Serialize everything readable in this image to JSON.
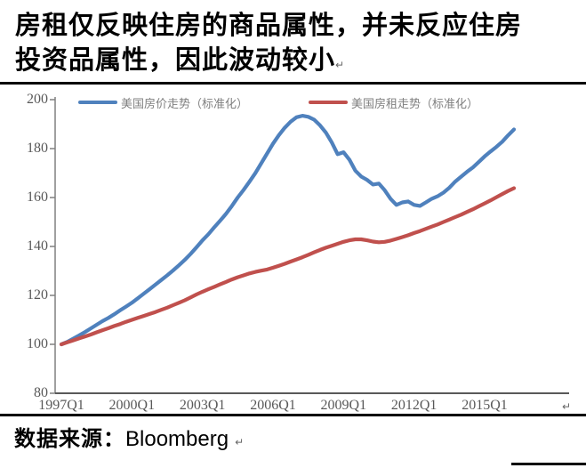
{
  "title": {
    "line1": "房租仅反映住房的商品属性，并未反应住房",
    "line2": "投资品属性，因此波动较小",
    "paragraph_mark": "↵"
  },
  "source": {
    "label": "数据来源：",
    "value": "Bloomberg"
  },
  "colors": {
    "price_line": "#4F81BD",
    "rent_line": "#C0504D",
    "axis": "#808080",
    "x_axis": "#595959",
    "tick_text": "#595959",
    "legend_text": "#7F7F7F"
  },
  "chart_data": {
    "type": "line",
    "title": "",
    "xlabel": "",
    "ylabel": "",
    "ylim": [
      80,
      200
    ],
    "y_ticks": [
      80,
      100,
      120,
      140,
      160,
      180,
      200
    ],
    "x_tick_labels": [
      "1997Q1",
      "2000Q1",
      "2003Q1",
      "2006Q1",
      "2009Q1",
      "2012Q1",
      "2015Q1"
    ],
    "x_freq": "quarterly",
    "x_start": "1997Q1",
    "x_end": "2016Q2",
    "grid": false,
    "legend_position": "top",
    "series": [
      {
        "name": "美国房价走势（标准化）",
        "color": "#4F81BD",
        "values": [
          100,
          101,
          102.3,
          103.6,
          105,
          106.5,
          108,
          109.5,
          110.8,
          112.3,
          113.9,
          115.4,
          117,
          118.8,
          120.7,
          122.5,
          124.4,
          126.3,
          128.2,
          130.2,
          132.3,
          134.5,
          137,
          139.7,
          142.5,
          145,
          147.8,
          150.5,
          153.3,
          156.5,
          160,
          163.1,
          166.5,
          170,
          174,
          178,
          182,
          185.5,
          188.5,
          191,
          192.8,
          193.4,
          193,
          191.8,
          189.5,
          186.5,
          182.5,
          177.7,
          178.5,
          175.5,
          171,
          168.6,
          167.2,
          165.3,
          165.7,
          163,
          159.5,
          157,
          158,
          158.4,
          157,
          156.6,
          158,
          159.5,
          160.5,
          162,
          164,
          166.5,
          168.5,
          170.5,
          172.3,
          174.5,
          176.8,
          178.8,
          180.7,
          182.8,
          185.4,
          187.8
        ]
      },
      {
        "name": "美国房租走势（标准化）",
        "color": "#C0504D",
        "values": [
          100,
          100.8,
          101.6,
          102.4,
          103.2,
          104,
          104.9,
          105.8,
          106.6,
          107.5,
          108.3,
          109.2,
          110,
          110.8,
          111.6,
          112.4,
          113.2,
          114.1,
          115,
          116,
          117,
          118,
          119.2,
          120.4,
          121.5,
          122.5,
          123.5,
          124.5,
          125.5,
          126.5,
          127.4,
          128.2,
          129,
          129.6,
          130.1,
          130.6,
          131.3,
          132.1,
          132.9,
          133.8,
          134.7,
          135.6,
          136.6,
          137.6,
          138.6,
          139.5,
          140.3,
          141.1,
          141.9,
          142.5,
          142.9,
          142.9,
          142.5,
          142,
          141.7,
          141.9,
          142.4,
          143.1,
          143.8,
          144.6,
          145.5,
          146.3,
          147.2,
          148.1,
          149,
          150,
          151,
          152,
          153,
          154.1,
          155.2,
          156.4,
          157.6,
          158.8,
          160.1,
          161.4,
          162.7,
          163.8
        ]
      }
    ]
  }
}
